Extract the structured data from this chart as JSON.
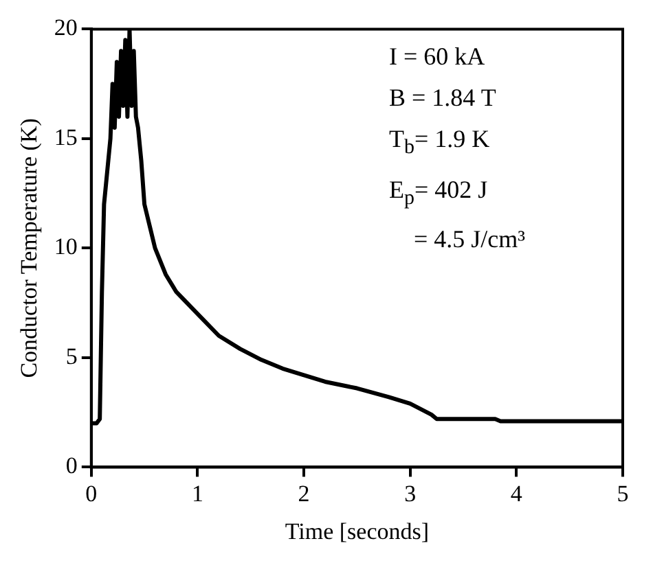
{
  "chart_data": {
    "type": "line",
    "xlabel": "Time [seconds]",
    "ylabel": "Conductor Temperature (K)",
    "x": [
      0,
      0.05,
      0.08,
      0.1,
      0.12,
      0.15,
      0.18,
      0.2,
      0.22,
      0.24,
      0.26,
      0.28,
      0.3,
      0.32,
      0.34,
      0.36,
      0.38,
      0.4,
      0.42,
      0.44,
      0.47,
      0.5,
      0.55,
      0.6,
      0.7,
      0.8,
      0.9,
      1.0,
      1.2,
      1.4,
      1.6,
      1.8,
      2.0,
      2.2,
      2.5,
      2.8,
      3.0,
      3.2,
      3.25,
      3.8,
      3.85,
      5
    ],
    "series": [
      {
        "color": "#000000",
        "values": [
          2,
          2,
          2.2,
          8,
          12,
          13.5,
          15,
          17.5,
          15.5,
          18.5,
          16,
          19,
          16.5,
          19.5,
          16,
          20,
          16.5,
          19,
          16,
          15.5,
          14,
          12,
          11,
          10,
          8.8,
          8,
          7.5,
          7,
          6,
          5.4,
          4.9,
          4.5,
          4.2,
          3.9,
          3.6,
          3.2,
          2.9,
          2.4,
          2.2,
          2.2,
          2.1,
          2.1
        ]
      }
    ],
    "xlim": [
      0,
      5
    ],
    "xticks": [
      0,
      1,
      2,
      3,
      4,
      5
    ],
    "ylim": [
      0,
      20
    ],
    "yticks": [
      0,
      5,
      10,
      15,
      20
    ],
    "grid": false,
    "legend": false,
    "marker": "none",
    "line_style": "solid",
    "annotations": [
      "I = 60 kA",
      "B = 1.84 T",
      "T$_{b}$= 1.9 K",
      "E$_{p}$= 402 J",
      "= 4.5 J/cm³"
    ]
  }
}
